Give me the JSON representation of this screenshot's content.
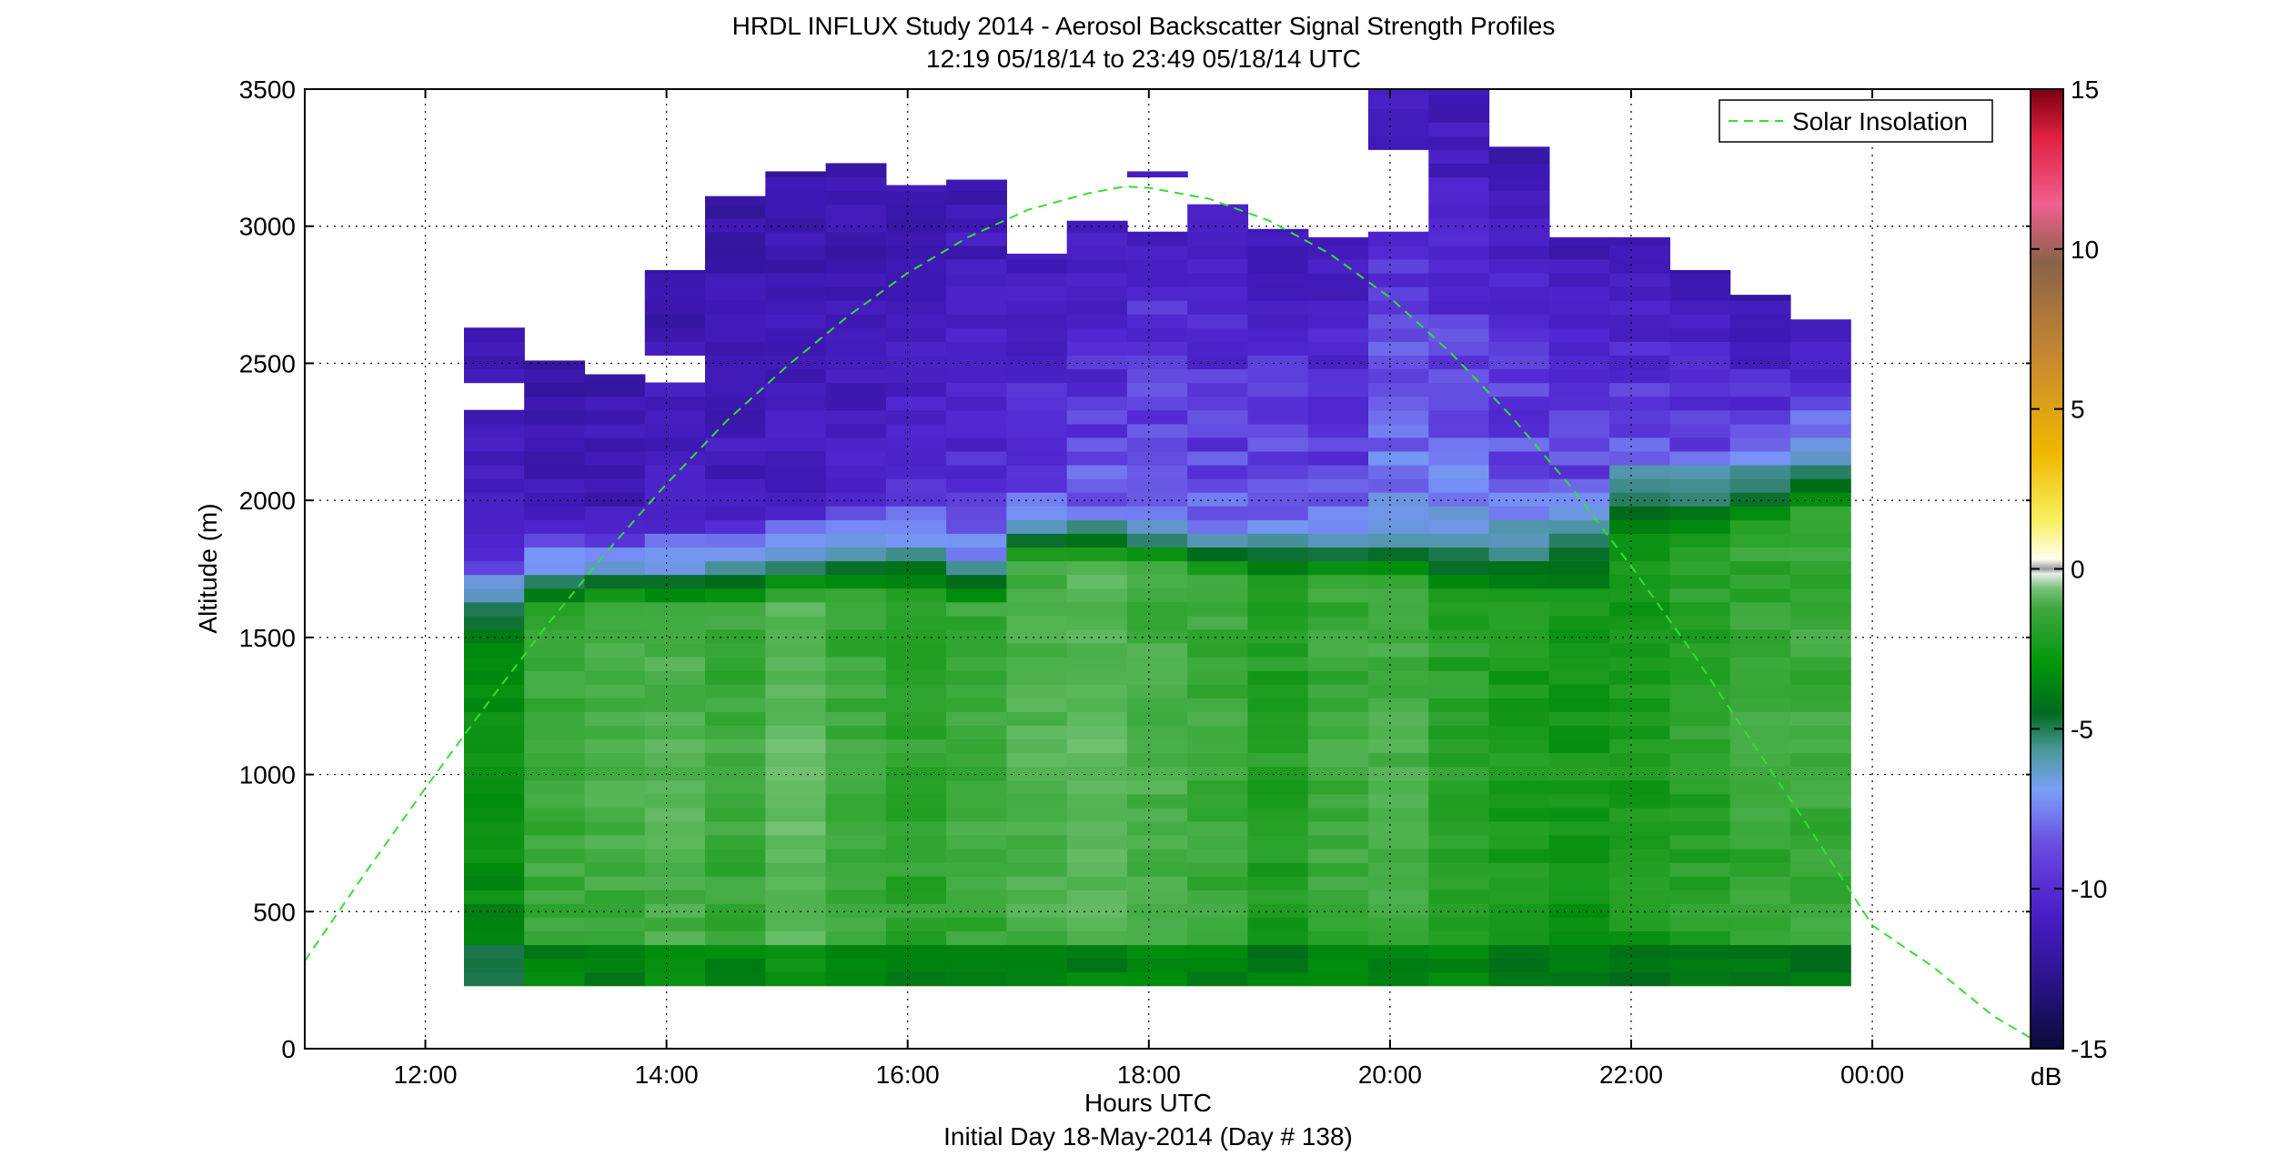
{
  "chart_data": {
    "type": "heatmap",
    "title": "HRDL INFLUX Study 2014 - Aerosol Backscatter Signal Strength Profiles",
    "subtitle": "12:19 05/18/14 to 23:49 05/18/14  UTC",
    "xlabel": "Hours UTC",
    "xlabel2": "Initial Day 18-May-2014 (Day # 138)",
    "ylabel": "Altitude (m)",
    "x_range_hours": [
      11.0,
      25.35
    ],
    "x_ticks": [
      {
        "value": 12,
        "label": "12:00"
      },
      {
        "value": 14,
        "label": "14:00"
      },
      {
        "value": 16,
        "label": "16:00"
      },
      {
        "value": 18,
        "label": "18:00"
      },
      {
        "value": 20,
        "label": "20:00"
      },
      {
        "value": 22,
        "label": "22:00"
      },
      {
        "value": 24,
        "label": "00:00"
      }
    ],
    "ylim": [
      0,
      3500
    ],
    "y_ticks": [
      0,
      500,
      1000,
      1500,
      2000,
      2500,
      3000,
      3500
    ],
    "grid": true,
    "colorbar": {
      "range": [
        -15,
        15
      ],
      "ticks": [
        -15,
        -10,
        -5,
        0,
        5,
        10,
        15
      ],
      "unit": "dB"
    },
    "legend": {
      "position": "top-right",
      "entries": [
        "Solar Insolation"
      ]
    },
    "solar_insolation": {
      "x_hours": [
        11.0,
        11.5,
        12.0,
        12.5,
        13.0,
        13.5,
        14.0,
        14.5,
        15.0,
        15.5,
        16.0,
        16.5,
        17.0,
        17.5,
        17.8,
        18.0,
        18.5,
        19.0,
        19.5,
        20.0,
        20.5,
        21.0,
        21.5,
        22.0,
        22.5,
        23.0,
        23.5,
        24.0,
        24.5,
        25.0,
        25.35
      ],
      "y_m": [
        320,
        640,
        950,
        1250,
        1540,
        1810,
        2060,
        2290,
        2490,
        2670,
        2830,
        2960,
        3060,
        3120,
        3145,
        3140,
        3100,
        3020,
        2900,
        2740,
        2540,
        2310,
        2050,
        1760,
        1450,
        1120,
        790,
        450,
        300,
        120,
        30
      ]
    },
    "profiles": [
      {
        "start": 12.32,
        "end": 12.82,
        "top": 2630,
        "gap": [
          2330,
          2430
        ],
        "pbl": 1600,
        "low_dB": -7.5,
        "mix_dB": -6.0,
        "transition_dB": -9.5,
        "free_dB": -11.5,
        "top_dB": -12.0
      },
      {
        "start": 12.82,
        "end": 13.32,
        "top": 2510,
        "gap": null,
        "pbl": 1700,
        "low_dB": -6.5,
        "mix_dB": -4.5,
        "transition_dB": -9.8,
        "free_dB": -11.8,
        "top_dB": -12.2
      },
      {
        "start": 13.32,
        "end": 13.82,
        "top": 2460,
        "gap": null,
        "pbl": 1720,
        "low_dB": -6.5,
        "mix_dB": -4.3,
        "transition_dB": -9.8,
        "free_dB": -11.8,
        "top_dB": -12.2
      },
      {
        "start": 13.82,
        "end": 14.32,
        "top": 2840,
        "gap": [
          2420,
          2550
        ],
        "pbl": 1700,
        "low_dB": -6.0,
        "mix_dB": -4.0,
        "transition_dB": -9.5,
        "free_dB": -11.6,
        "top_dB": -12.1
      },
      {
        "start": 14.32,
        "end": 14.82,
        "top": 3110,
        "gap": null,
        "pbl": 1720,
        "low_dB": -6.5,
        "mix_dB": -4.5,
        "transition_dB": -9.5,
        "free_dB": -11.7,
        "top_dB": -12.2
      },
      {
        "start": 14.82,
        "end": 15.32,
        "top": 3200,
        "gap": null,
        "pbl": 1740,
        "low_dB": -6.0,
        "mix_dB": -3.5,
        "transition_dB": -9.3,
        "free_dB": -11.6,
        "top_dB": -12.2
      },
      {
        "start": 15.32,
        "end": 15.82,
        "top": 3230,
        "gap": null,
        "pbl": 1760,
        "low_dB": -6.5,
        "mix_dB": -4.5,
        "transition_dB": -9.0,
        "free_dB": -11.5,
        "top_dB": -12.2
      },
      {
        "start": 15.82,
        "end": 16.32,
        "top": 3150,
        "gap": null,
        "pbl": 1770,
        "low_dB": -6.5,
        "mix_dB": -4.8,
        "transition_dB": -9.2,
        "free_dB": -11.2,
        "top_dB": -12.1
      },
      {
        "start": 16.32,
        "end": 16.82,
        "top": 3170,
        "gap": null,
        "pbl": 1720,
        "low_dB": -6.5,
        "mix_dB": -4.5,
        "transition_dB": -9.5,
        "free_dB": -11.0,
        "top_dB": -12.0
      },
      {
        "start": 16.82,
        "end": 17.32,
        "top": 2900,
        "gap": null,
        "pbl": 1870,
        "low_dB": -6.5,
        "mix_dB": -4.0,
        "transition_dB": -10.0,
        "free_dB": -10.8,
        "top_dB": -11.8
      },
      {
        "start": 17.32,
        "end": 17.82,
        "top": 3020,
        "gap": [
          2860,
          2880
        ],
        "pbl": 1880,
        "low_dB": -6.5,
        "mix_dB": -3.6,
        "transition_dB": -10.0,
        "free_dB": -10.6,
        "top_dB": -11.8
      },
      {
        "start": 17.82,
        "end": 18.32,
        "top": 3200,
        "gap": [
          2990,
          3170
        ],
        "pbl": 1860,
        "low_dB": -6.5,
        "mix_dB": -4.2,
        "transition_dB": -10.0,
        "free_dB": -10.4,
        "top_dB": -11.7
      },
      {
        "start": 18.32,
        "end": 18.82,
        "top": 3080,
        "gap": null,
        "pbl": 1830,
        "low_dB": -6.5,
        "mix_dB": -4.5,
        "transition_dB": -10.0,
        "free_dB": -10.5,
        "top_dB": -11.8
      },
      {
        "start": 18.82,
        "end": 19.32,
        "top": 2990,
        "gap": null,
        "pbl": 1820,
        "low_dB": -6.8,
        "mix_dB": -5.2,
        "transition_dB": -9.8,
        "free_dB": -10.5,
        "top_dB": -11.8
      },
      {
        "start": 19.32,
        "end": 19.82,
        "top": 2960,
        "gap": null,
        "pbl": 1820,
        "low_dB": -6.5,
        "mix_dB": -4.5,
        "transition_dB": -9.5,
        "free_dB": -10.6,
        "top_dB": -11.8
      },
      {
        "start": 19.82,
        "end": 20.32,
        "top": 3500,
        "gap": [
          2960,
          3290
        ],
        "pbl": 1820,
        "low_dB": -6.5,
        "mix_dB": -4.3,
        "transition_dB": -9.5,
        "free_dB": -10.0,
        "top_dB": -11.8
      },
      {
        "start": 20.32,
        "end": 20.82,
        "top": 3500,
        "gap": null,
        "pbl": 1780,
        "low_dB": -6.5,
        "mix_dB": -5.0,
        "transition_dB": -9.2,
        "free_dB": -10.0,
        "top_dB": -12.0
      },
      {
        "start": 20.82,
        "end": 21.32,
        "top": 3290,
        "gap": null,
        "pbl": 1760,
        "low_dB": -6.8,
        "mix_dB": -5.4,
        "transition_dB": -8.5,
        "free_dB": -10.3,
        "top_dB": -12.0
      },
      {
        "start": 21.32,
        "end": 21.82,
        "top": 2960,
        "gap": null,
        "pbl": 1760,
        "low_dB": -7.0,
        "mix_dB": -5.6,
        "transition_dB": -8.0,
        "free_dB": -10.4,
        "top_dB": -12.0
      },
      {
        "start": 21.82,
        "end": 22.32,
        "top": 2960,
        "gap": null,
        "pbl": 1940,
        "low_dB": -7.0,
        "mix_dB": -5.4,
        "transition_dB": -8.3,
        "free_dB": -10.5,
        "top_dB": -12.0
      },
      {
        "start": 22.32,
        "end": 22.82,
        "top": 2840,
        "gap": null,
        "pbl": 1960,
        "low_dB": -7.0,
        "mix_dB": -5.0,
        "transition_dB": -8.5,
        "free_dB": -10.6,
        "top_dB": -12.0
      },
      {
        "start": 22.82,
        "end": 23.32,
        "top": 2750,
        "gap": null,
        "pbl": 2000,
        "low_dB": -7.0,
        "mix_dB": -4.6,
        "transition_dB": -8.5,
        "free_dB": -10.7,
        "top_dB": -12.0
      },
      {
        "start": 23.32,
        "end": 23.82,
        "top": 2660,
        "gap": null,
        "pbl": 2060,
        "low_dB": -6.8,
        "mix_dB": -4.5,
        "transition_dB": -8.5,
        "free_dB": -10.6,
        "top_dB": -12.0
      }
    ]
  }
}
